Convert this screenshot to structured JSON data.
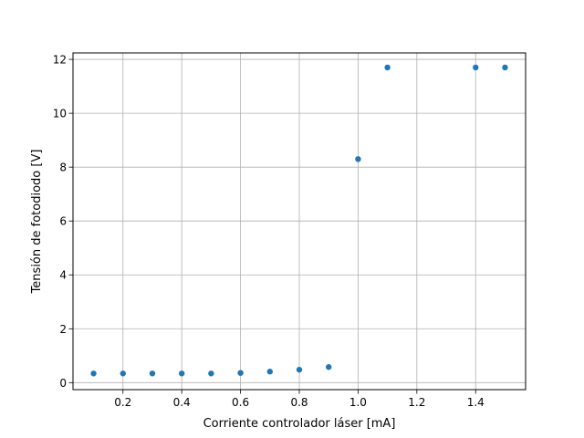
{
  "chart_data": {
    "type": "scatter",
    "title": "",
    "xlabel": "Corriente controlador láser [mA]",
    "ylabel": "Tensión de fotodiodo [V]",
    "xlim": [
      0.03,
      1.57
    ],
    "ylim": [
      -0.26,
      12.24
    ],
    "xticks": [
      0.2,
      0.4,
      0.6,
      0.8,
      1.0,
      1.2,
      1.4
    ],
    "xtick_labels": [
      "0.2",
      "0.4",
      "0.6",
      "0.8",
      "1.0",
      "1.2",
      "1.4"
    ],
    "yticks": [
      0,
      2,
      4,
      6,
      8,
      10,
      12
    ],
    "ytick_labels": [
      "0",
      "2",
      "4",
      "6",
      "8",
      "10",
      "12"
    ],
    "grid": true,
    "marker_color": "#1f77b4",
    "series": [
      {
        "x": [
          0.1,
          0.2,
          0.3,
          0.4,
          0.5,
          0.6,
          0.7,
          0.8,
          0.9,
          1.0,
          1.1,
          1.4,
          1.5
        ],
        "y": [
          0.34,
          0.34,
          0.34,
          0.34,
          0.34,
          0.36,
          0.41,
          0.48,
          0.58,
          8.3,
          11.7,
          11.7,
          11.7
        ]
      }
    ]
  }
}
